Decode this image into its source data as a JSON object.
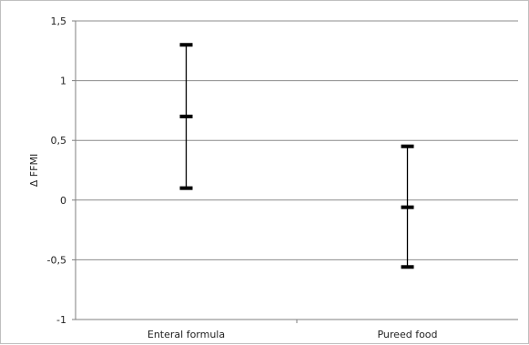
{
  "chart_data": {
    "type": "errorbar",
    "title": "",
    "xlabel": "",
    "ylabel": "Δ FFMI",
    "categories": [
      "Enteral formula",
      "Pureed food"
    ],
    "series": [
      {
        "mean": [
          0.7,
          -0.06
        ],
        "upper": [
          1.3,
          0.45
        ],
        "lower": [
          0.1,
          -0.56
        ]
      }
    ],
    "ylim": [
      -1,
      1.5
    ],
    "yticks": [
      1.5,
      1,
      0.5,
      0,
      -0.5,
      -1
    ],
    "ytick_labels": [
      "1,5",
      "1",
      "0,5",
      "0",
      "-0,5",
      "-1"
    ],
    "grid": true,
    "legend": "none",
    "colors": {
      "axis": "#7f7f7f",
      "grid": "#8c8c8c",
      "bar": "#000000",
      "text": "#222222"
    }
  }
}
